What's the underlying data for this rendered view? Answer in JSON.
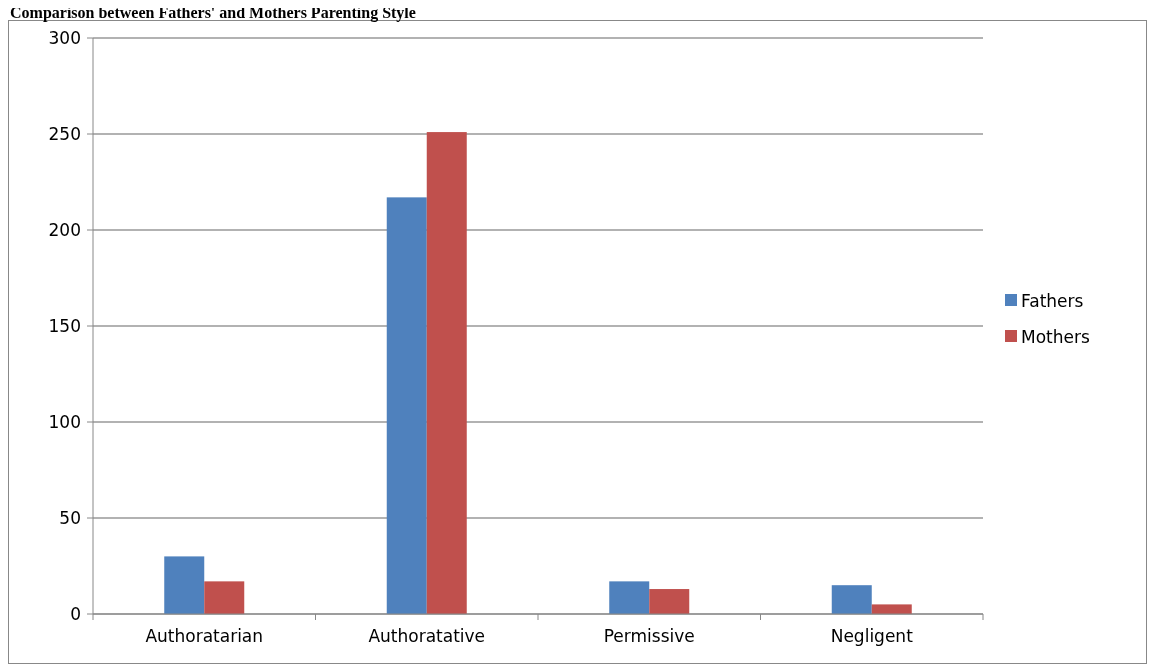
{
  "chart_data": {
    "type": "bar",
    "title": "Comparison between Fathers' and Mothers Parenting Style",
    "categories": [
      "Authoratarian",
      "Authoratative",
      "Permissive",
      "Negligent"
    ],
    "series": [
      {
        "name": "Fathers",
        "color": "#4f81bd",
        "values": [
          30,
          217,
          17,
          15
        ]
      },
      {
        "name": "Mothers",
        "color": "#c0504d",
        "values": [
          17,
          251,
          13,
          5
        ]
      }
    ],
    "ylim": [
      0,
      300
    ],
    "yticks": [
      0,
      50,
      100,
      150,
      200,
      250,
      300
    ],
    "grid": "y",
    "legend": "right"
  }
}
